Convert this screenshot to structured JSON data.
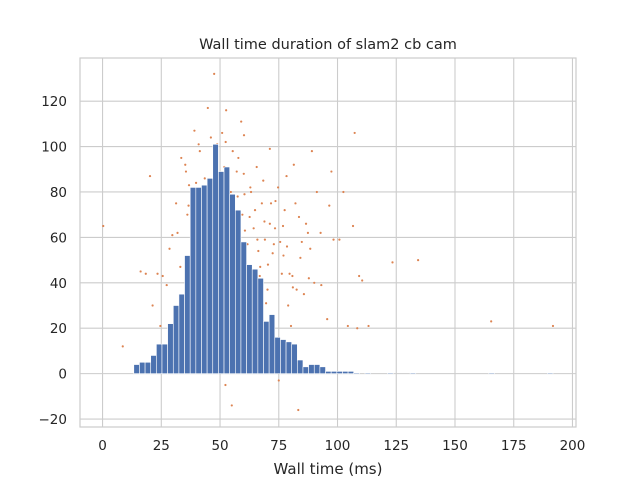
{
  "chart_data": {
    "type": "bar",
    "title": "Wall time duration of slam2 cb cam",
    "xlabel": "Wall time (ms)",
    "ylabel": "",
    "xlim": [
      -9.6,
      201.5
    ],
    "ylim": [
      -23.5,
      139
    ],
    "xticks": [
      0,
      25,
      50,
      75,
      100,
      125,
      150,
      175,
      200
    ],
    "yticks": [
      -20,
      0,
      20,
      40,
      60,
      80,
      100,
      120
    ],
    "grid": true,
    "legend": "none",
    "series": [
      {
        "type": "histogram",
        "bin_width": 2.4,
        "color": "#4c72b0",
        "bars": [
          {
            "x": 14.5,
            "count": 4
          },
          {
            "x": 16.9,
            "count": 5
          },
          {
            "x": 19.3,
            "count": 5
          },
          {
            "x": 21.7,
            "count": 8
          },
          {
            "x": 24.1,
            "count": 13
          },
          {
            "x": 26.5,
            "count": 13
          },
          {
            "x": 28.9,
            "count": 22
          },
          {
            "x": 31.3,
            "count": 30
          },
          {
            "x": 33.7,
            "count": 35
          },
          {
            "x": 36.1,
            "count": 52
          },
          {
            "x": 38.5,
            "count": 82
          },
          {
            "x": 40.9,
            "count": 82
          },
          {
            "x": 43.3,
            "count": 83
          },
          {
            "x": 45.7,
            "count": 86
          },
          {
            "x": 48.1,
            "count": 101
          },
          {
            "x": 50.5,
            "count": 89
          },
          {
            "x": 52.9,
            "count": 91
          },
          {
            "x": 55.3,
            "count": 79
          },
          {
            "x": 57.7,
            "count": 72
          },
          {
            "x": 60.1,
            "count": 58
          },
          {
            "x": 62.5,
            "count": 48
          },
          {
            "x": 64.9,
            "count": 46
          },
          {
            "x": 67.3,
            "count": 42
          },
          {
            "x": 69.7,
            "count": 23
          },
          {
            "x": 72.1,
            "count": 26
          },
          {
            "x": 74.5,
            "count": 16
          },
          {
            "x": 76.9,
            "count": 15
          },
          {
            "x": 79.3,
            "count": 14
          },
          {
            "x": 81.7,
            "count": 13
          },
          {
            "x": 84.1,
            "count": 6
          },
          {
            "x": 86.5,
            "count": 3
          },
          {
            "x": 88.9,
            "count": 4
          },
          {
            "x": 91.3,
            "count": 4
          },
          {
            "x": 93.7,
            "count": 3
          },
          {
            "x": 96.1,
            "count": 1
          },
          {
            "x": 98.5,
            "count": 1
          },
          {
            "x": 100.9,
            "count": 1
          },
          {
            "x": 103.3,
            "count": 1
          },
          {
            "x": 105.7,
            "count": 1
          },
          {
            "x": 108.1,
            "count": 0.4
          },
          {
            "x": 112.9,
            "count": 0.4
          },
          {
            "x": 122.5,
            "count": 0.4
          },
          {
            "x": 132.1,
            "count": 0.4
          },
          {
            "x": 165.6,
            "count": 0.4
          },
          {
            "x": 190.5,
            "count": 0.4
          }
        ]
      },
      {
        "type": "scatter",
        "color": "#dd8452",
        "points": [
          [
            0.3,
            65
          ],
          [
            8.6,
            12
          ],
          [
            16.2,
            45
          ],
          [
            18.4,
            44
          ],
          [
            20.2,
            87
          ],
          [
            21.3,
            30
          ],
          [
            23.4,
            44
          ],
          [
            24.6,
            21
          ],
          [
            25.6,
            43
          ],
          [
            27.3,
            39
          ],
          [
            28.5,
            55
          ],
          [
            29.7,
            61
          ],
          [
            31.3,
            75
          ],
          [
            33.5,
            95
          ],
          [
            35.5,
            89
          ],
          [
            36.6,
            74
          ],
          [
            37.8,
            67
          ],
          [
            38.3,
            40
          ],
          [
            39.1,
            107
          ],
          [
            39.8,
            84
          ],
          [
            40.2,
            60
          ],
          [
            41.4,
            98
          ],
          [
            41.8,
            55
          ],
          [
            42.3,
            28
          ],
          [
            43.1,
            74
          ],
          [
            43.5,
            86
          ],
          [
            44.1,
            67
          ],
          [
            44.6,
            31
          ],
          [
            45.6,
            54
          ],
          [
            46.1,
            104
          ],
          [
            46.6,
            63
          ],
          [
            47.5,
            132
          ],
          [
            48.1,
            85
          ],
          [
            48.3,
            67
          ],
          [
            48.8,
            101
          ],
          [
            49.5,
            73
          ],
          [
            49.9,
            33
          ],
          [
            50.4,
            39
          ],
          [
            50.8,
            15
          ],
          [
            51.2,
            60
          ],
          [
            51.5,
            85
          ],
          [
            52.1,
            86
          ],
          [
            52.4,
            102
          ],
          [
            52.8,
            75
          ],
          [
            53.3,
            20
          ],
          [
            53.8,
            55
          ],
          [
            54.5,
            41
          ],
          [
            55.4,
            98
          ],
          [
            55.9,
            68
          ],
          [
            56.4,
            43
          ],
          [
            57.1,
            89
          ],
          [
            57.5,
            78
          ],
          [
            58.6,
            33
          ],
          [
            59.0,
            111
          ],
          [
            60.1,
            88
          ],
          [
            60.6,
            63
          ],
          [
            61.4,
            36
          ],
          [
            62.2,
            44
          ],
          [
            62.9,
            82
          ],
          [
            63.6,
            38
          ],
          [
            64.3,
            64
          ],
          [
            64.9,
            72
          ],
          [
            65.6,
            91
          ],
          [
            66.3,
            54
          ],
          [
            67.1,
            47
          ],
          [
            67.8,
            75
          ],
          [
            68.4,
            85
          ],
          [
            69.1,
            59
          ],
          [
            70.2,
            37
          ],
          [
            71.2,
            66
          ],
          [
            72.4,
            53
          ],
          [
            73.6,
            76
          ],
          [
            74.7,
            82
          ],
          [
            75.6,
            58
          ],
          [
            76.3,
            44
          ],
          [
            77.5,
            72
          ],
          [
            78.3,
            87
          ],
          [
            79.6,
            44
          ],
          [
            80.2,
            21
          ],
          [
            81.4,
            92
          ],
          [
            82.1,
            75
          ],
          [
            83.6,
            69
          ],
          [
            84.2,
            51
          ],
          [
            85.7,
            35
          ],
          [
            86.6,
            66
          ],
          [
            87.4,
            62
          ],
          [
            89.1,
            98
          ],
          [
            91.2,
            80
          ],
          [
            92.8,
            62
          ],
          [
            95.6,
            24
          ],
          [
            96.5,
            74
          ],
          [
            98.3,
            59
          ],
          [
            100.8,
            59
          ],
          [
            102.5,
            80
          ],
          [
            104.4,
            21
          ],
          [
            106.6,
            65
          ],
          [
            107.3,
            106
          ],
          [
            108.4,
            20
          ],
          [
            109.2,
            43
          ],
          [
            110.5,
            41
          ],
          [
            113.2,
            21
          ],
          [
            123.4,
            49
          ],
          [
            134.3,
            50
          ],
          [
            165.4,
            23
          ],
          [
            191.7,
            21
          ],
          [
            36.8,
            83
          ],
          [
            38.9,
            36
          ],
          [
            41.0,
            49
          ],
          [
            45.0,
            70
          ],
          [
            46.9,
            55
          ],
          [
            49.7,
            50
          ],
          [
            52.3,
            -5
          ],
          [
            54.6,
            80
          ],
          [
            56.8,
            64
          ],
          [
            58.4,
            51
          ],
          [
            59.5,
            70
          ],
          [
            61.7,
            57
          ],
          [
            63.2,
            80
          ],
          [
            65.2,
            37
          ],
          [
            66.9,
            43
          ],
          [
            68.9,
            67
          ],
          [
            70.4,
            48
          ],
          [
            73.4,
            64
          ],
          [
            78.5,
            56
          ],
          [
            80.8,
            43
          ],
          [
            82.6,
            37
          ],
          [
            84.8,
            58
          ],
          [
            87.8,
            42
          ],
          [
            90.1,
            40
          ],
          [
            36.1,
            70
          ],
          [
            40.6,
            62
          ],
          [
            43.8,
            49
          ],
          [
            50.9,
            106
          ],
          [
            57.8,
            95
          ],
          [
            64.0,
            30
          ],
          [
            69.6,
            31
          ],
          [
            75.0,
            -3
          ],
          [
            81.0,
            38
          ],
          [
            33.1,
            47
          ],
          [
            35.2,
            92
          ],
          [
            38.1,
            51
          ],
          [
            42.8,
            44
          ],
          [
            47.2,
            46
          ],
          [
            53.0,
            31
          ],
          [
            55.0,
            -14
          ],
          [
            60.4,
            79
          ],
          [
            62.6,
            69
          ],
          [
            66.7,
            19
          ],
          [
            71.7,
            75
          ],
          [
            76.8,
            65
          ],
          [
            83.3,
            -16
          ],
          [
            88.4,
            55
          ],
          [
            93.1,
            39
          ],
          [
            97.4,
            89
          ],
          [
            40.9,
            101
          ],
          [
            44.8,
            117
          ],
          [
            52.6,
            116
          ],
          [
            60.2,
            105
          ],
          [
            71.2,
            99
          ],
          [
            31.9,
            62
          ],
          [
            34.1,
            33
          ],
          [
            37.2,
            49
          ],
          [
            42.0,
            80
          ],
          [
            46.3,
            78
          ],
          [
            48.7,
            58
          ],
          [
            51.8,
            91
          ],
          [
            56.0,
            46
          ],
          [
            59.3,
            42
          ],
          [
            61.0,
            27
          ],
          [
            65.9,
            59
          ],
          [
            68.0,
            24
          ],
          [
            72.9,
            57
          ],
          [
            77.0,
            52
          ],
          [
            79.0,
            30
          ]
        ]
      }
    ]
  }
}
